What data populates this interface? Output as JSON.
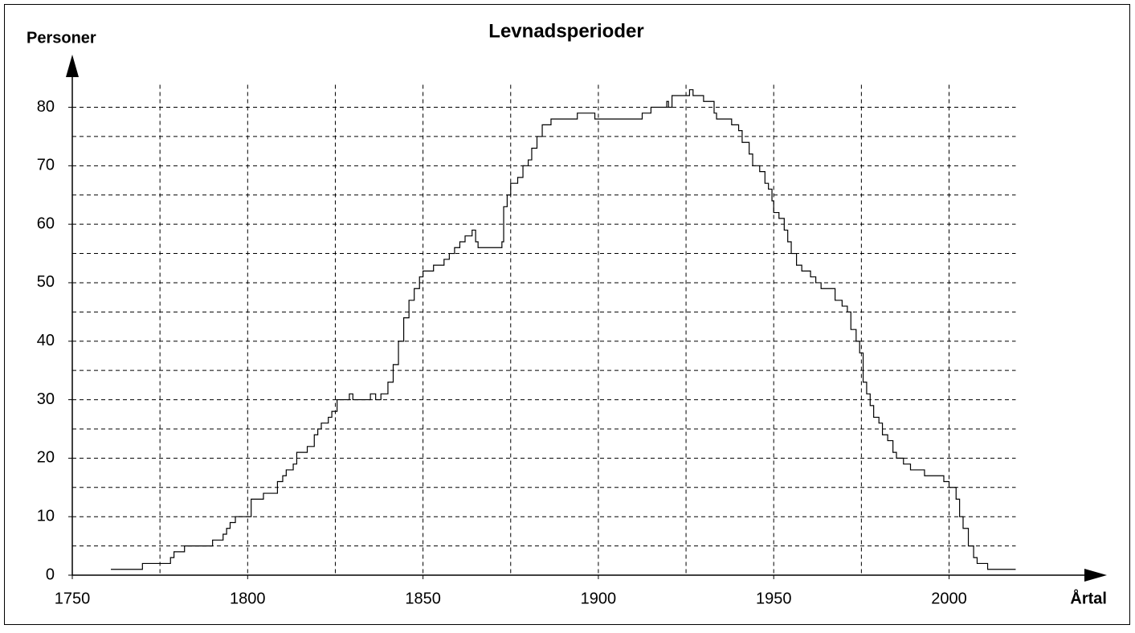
{
  "chart_data": {
    "type": "step",
    "title": "Levnadsperioder",
    "y_label": "Personer",
    "x_label": "Årtal",
    "x": [
      1761,
      1770,
      1778,
      1779,
      1782,
      1790,
      1793,
      1794,
      1795,
      1796.5,
      1801,
      1804.5,
      1808.5,
      1810,
      1811,
      1813,
      1814,
      1817,
      1819,
      1820,
      1821,
      1823,
      1824,
      1825.5,
      1829,
      1830,
      1835,
      1836.5,
      1838,
      1840,
      1841.5,
      1843,
      1844.5,
      1846,
      1847.5,
      1849,
      1850,
      1853,
      1856,
      1857.5,
      1859,
      1860.5,
      1862,
      1864,
      1865,
      1865.7,
      1872.5,
      1873,
      1874,
      1875,
      1877,
      1878.5,
      1880,
      1881,
      1882.5,
      1884,
      1886.5,
      1894,
      1899,
      1912.5,
      1915,
      1919.5,
      1920,
      1921,
      1926,
      1927,
      1930,
      1933,
      1933.7,
      1938,
      1940,
      1941,
      1943,
      1944,
      1946,
      1947.5,
      1948.5,
      1949.5,
      1950,
      1951.5,
      1953,
      1954,
      1955,
      1956.5,
      1958,
      1960.5,
      1962,
      1963.5,
      1967.5,
      1969.5,
      1971,
      1972,
      1973.5,
      1974.5,
      1975.5,
      1976.5,
      1977.5,
      1978.5,
      1980,
      1981,
      1982.5,
      1984,
      1985,
      1987,
      1989,
      1993,
      1998.5,
      2000,
      2002,
      2003,
      2004,
      2005.5,
      2007,
      2008,
      2011,
      2019
    ],
    "values": [
      1,
      2,
      3,
      4,
      5,
      6,
      7,
      8,
      9,
      10,
      13,
      14,
      16,
      17,
      18,
      19,
      21,
      22,
      24,
      25,
      26,
      27,
      28,
      30,
      31,
      30,
      31,
      30,
      31,
      33,
      36,
      40,
      44,
      47,
      49,
      51,
      52,
      53,
      54,
      55,
      56,
      57,
      58,
      59,
      57,
      56,
      57,
      63,
      65,
      67,
      68,
      70,
      71,
      73,
      75,
      77,
      78,
      79,
      78,
      79,
      80,
      81,
      80,
      82,
      83,
      82,
      81,
      79,
      78,
      77,
      76,
      74,
      72,
      70,
      69,
      67,
      66,
      64,
      62,
      61,
      59,
      57,
      55,
      53,
      52,
      51,
      50,
      49,
      47,
      46,
      45,
      42,
      40,
      38,
      33,
      31,
      29,
      27,
      26,
      24,
      23,
      21,
      20,
      19,
      18,
      17,
      16,
      15,
      13,
      10,
      8,
      5,
      3,
      2,
      1,
      1
    ],
    "color": "#000000",
    "xlim": [
      1750,
      2045
    ],
    "ylim": [
      0,
      89
    ],
    "xticks": [
      1750,
      1800,
      1850,
      1900,
      1950,
      2000
    ],
    "yticks": [
      0,
      10,
      20,
      30,
      40,
      50,
      60,
      70,
      80
    ],
    "xminorticks": [
      1775,
      1825,
      1875,
      1925,
      1975
    ],
    "yminorticks": [
      5,
      15,
      25,
      35,
      45,
      55,
      65,
      75
    ],
    "grid": true,
    "grid_end_x": 2019
  }
}
